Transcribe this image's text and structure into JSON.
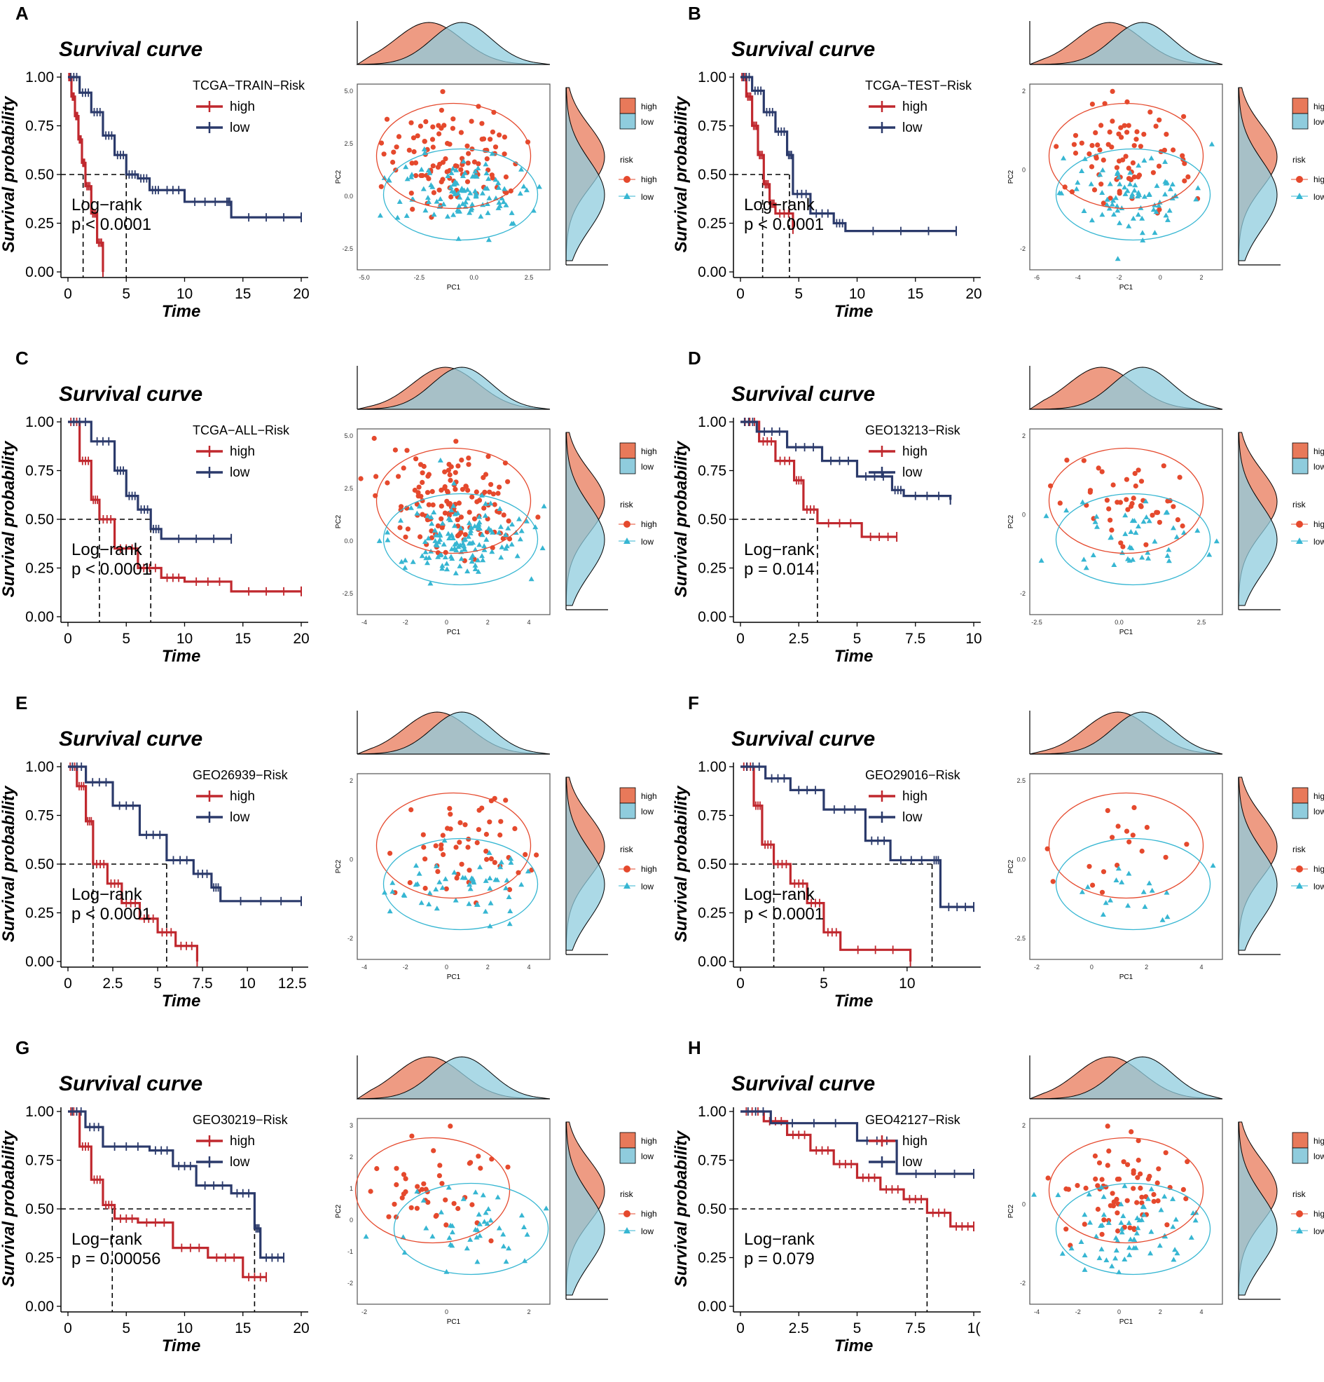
{
  "colors": {
    "high_line": "#C0282E",
    "low_line": "#2B3A6B",
    "high_fill": "#E8795A",
    "low_fill": "#8FCCDD",
    "overlap": "#6F9691",
    "high_point": "#E5492D",
    "low_point": "#36B6D2",
    "dash": "#000000"
  },
  "panels": [
    {
      "label": "A",
      "survival": {
        "title": "Survival curve",
        "xlabel": "Time",
        "ylabel": "Survival probability",
        "legend_title": "TCGA−TRAIN−Risk",
        "legend_high": "high",
        "legend_low": "low",
        "logrank_line1": "Log−rank",
        "logrank_line2": "p < 0.0001",
        "xticks": [
          "0",
          "5",
          "10",
          "15",
          "20"
        ],
        "yticks": [
          "0.00",
          "0.25",
          "0.50",
          "0.75",
          "1.00"
        ]
      },
      "pca": {
        "xlabel": "PC1",
        "ylabel": "PC2",
        "xticks": [
          "-5.0",
          "-2.5",
          "0.0",
          "2.5"
        ],
        "yticks": [
          "5.0",
          "2.5",
          "0.0",
          "-2.5"
        ],
        "legend_high": "high",
        "legend_low": "low",
        "legend_title": "risk"
      }
    },
    {
      "label": "B",
      "survival": {
        "title": "Survival curve",
        "xlabel": "Time",
        "ylabel": "Survival probability",
        "legend_title": "TCGA−TEST−Risk",
        "legend_high": "high",
        "legend_low": "low",
        "logrank_line1": "Log−rank",
        "logrank_line2": "p < 0.0001",
        "xticks": [
          "0",
          "5",
          "10",
          "15",
          "20"
        ],
        "yticks": [
          "0.00",
          "0.25",
          "0.50",
          "0.75",
          "1.00"
        ]
      },
      "pca": {
        "xlabel": "PC1",
        "ylabel": "PC2",
        "xticks": [
          "-6",
          "-4",
          "-2",
          "0",
          "2"
        ],
        "yticks": [
          "2",
          "0",
          "-2"
        ],
        "legend_high": "high",
        "legend_low": "low",
        "legend_title": "risk"
      }
    },
    {
      "label": "C",
      "survival": {
        "title": "Survival curve",
        "xlabel": "Time",
        "ylabel": "Survival probability",
        "legend_title": "TCGA−ALL−Risk",
        "legend_high": "high",
        "legend_low": "low",
        "logrank_line1": "Log−rank",
        "logrank_line2": "p < 0.0001",
        "xticks": [
          "0",
          "5",
          "10",
          "15",
          "20"
        ],
        "yticks": [
          "0.00",
          "0.25",
          "0.50",
          "0.75",
          "1.00"
        ]
      },
      "pca": {
        "xlabel": "PC1",
        "ylabel": "PC2",
        "xticks": [
          "-4",
          "-2",
          "0",
          "2",
          "4"
        ],
        "yticks": [
          "5.0",
          "2.5",
          "0.0",
          "-2.5"
        ],
        "legend_high": "high",
        "legend_low": "low",
        "legend_title": "risk"
      }
    },
    {
      "label": "D",
      "survival": {
        "title": "Survival curve",
        "xlabel": "Time",
        "ylabel": "Survival probability",
        "legend_title": "GEO13213−Risk",
        "legend_high": "high",
        "legend_low": "low",
        "logrank_line1": "Log−rank",
        "logrank_line2": "p = 0.014",
        "xticks": [
          "0",
          "2.5",
          "5",
          "7.5",
          "10"
        ],
        "yticks": [
          "0.00",
          "0.25",
          "0.50",
          "0.75",
          "1.00"
        ]
      },
      "pca": {
        "xlabel": "PC1",
        "ylabel": "PC2",
        "xticks": [
          "-2.5",
          "0.0",
          "2.5"
        ],
        "yticks": [
          "2",
          "0",
          "-2"
        ],
        "legend_high": "high",
        "legend_low": "low",
        "legend_title": "risk"
      }
    },
    {
      "label": "E",
      "survival": {
        "title": "Survival curve",
        "xlabel": "Time",
        "ylabel": "Survival probability",
        "legend_title": "GEO26939−Risk",
        "legend_high": "high",
        "legend_low": "low",
        "logrank_line1": "Log−rank",
        "logrank_line2": "p < 0.0001",
        "xticks": [
          "0",
          "2.5",
          "5",
          "7.5",
          "10",
          "12.5"
        ],
        "yticks": [
          "0.00",
          "0.25",
          "0.50",
          "0.75",
          "1.00"
        ]
      },
      "pca": {
        "xlabel": "PC1",
        "ylabel": "PC2",
        "xticks": [
          "-4",
          "-2",
          "0",
          "2",
          "4"
        ],
        "yticks": [
          "2",
          "0",
          "-2"
        ],
        "legend_high": "high",
        "legend_low": "low",
        "legend_title": "risk"
      }
    },
    {
      "label": "F",
      "survival": {
        "title": "Survival curve",
        "xlabel": "Time",
        "ylabel": "Survival probability",
        "legend_title": "GEO29016−Risk",
        "legend_high": "high",
        "legend_low": "low",
        "logrank_line1": "Log−rank",
        "logrank_line2": "p < 0.0001",
        "xticks": [
          "0",
          "5",
          "10",
          "1"
        ],
        "yticks": [
          "0.00",
          "0.25",
          "0.50",
          "0.75",
          "1.00"
        ]
      },
      "pca": {
        "xlabel": "PC1",
        "ylabel": "PC2",
        "xticks": [
          "-2",
          "0",
          "2",
          "4"
        ],
        "yticks": [
          "2.5",
          "0.0",
          "-2.5"
        ],
        "legend_high": "high",
        "legend_low": "low",
        "legend_title": "risk"
      }
    },
    {
      "label": "G",
      "survival": {
        "title": "Survival curve",
        "xlabel": "Time",
        "ylabel": "Survival probability",
        "legend_title": "GEO30219−Risk",
        "legend_high": "high",
        "legend_low": "low",
        "logrank_line1": "Log−rank",
        "logrank_line2": "p = 0.00056",
        "xticks": [
          "0",
          "5",
          "10",
          "15",
          "20"
        ],
        "yticks": [
          "0.00",
          "0.25",
          "0.50",
          "0.75",
          "1.00"
        ]
      },
      "pca": {
        "xlabel": "PC1",
        "ylabel": "PC2",
        "xticks": [
          "-2",
          "0",
          "2"
        ],
        "yticks": [
          "3",
          "2",
          "1",
          "0",
          "-1",
          "-2"
        ],
        "legend_high": "high",
        "legend_low": "low",
        "legend_title": "risk"
      }
    },
    {
      "label": "H",
      "survival": {
        "title": "Survival curve",
        "xlabel": "Time",
        "ylabel": "Survival probability",
        "legend_title": "GEO42127−Risk",
        "legend_high": "high",
        "legend_low": "low",
        "logrank_line1": "Log−rank",
        "logrank_line2": "p = 0.079",
        "xticks": [
          "0",
          "2.5",
          "5",
          "7.5",
          "1("
        ],
        "yticks": [
          "0.00",
          "0.25",
          "0.50",
          "0.75",
          "1.00"
        ]
      },
      "pca": {
        "xlabel": "PC1",
        "ylabel": "PC2",
        "xticks": [
          "-4",
          "-2",
          "0",
          "2",
          "4"
        ],
        "yticks": [
          "2",
          "0",
          "-2"
        ],
        "legend_high": "high",
        "legend_low": "low",
        "legend_title": "risk"
      }
    }
  ],
  "chart_data": [
    {
      "type": "line",
      "panel": "A",
      "title": "Survival curve",
      "xlabel": "Time",
      "ylabel": "Survival probability",
      "xlim": [
        0,
        20
      ],
      "ylim": [
        0,
        1
      ],
      "series": [
        {
          "name": "high",
          "x": [
            0,
            0.3,
            0.6,
            0.9,
            1.2,
            1.5,
            2.0,
            2.5,
            3.0
          ],
          "y": [
            1.0,
            0.9,
            0.8,
            0.68,
            0.56,
            0.44,
            0.3,
            0.15,
            0.0
          ]
        },
        {
          "name": "low",
          "x": [
            0,
            1,
            2,
            3,
            4,
            5,
            6,
            7,
            8,
            10,
            13.5,
            14,
            20
          ],
          "y": [
            1.0,
            0.92,
            0.82,
            0.7,
            0.6,
            0.5,
            0.48,
            0.42,
            0.42,
            0.36,
            0.36,
            0.28,
            0.28
          ]
        }
      ],
      "median_high": 1.3,
      "median_low": 5.0,
      "annotation": "Log−rank p < 0.0001"
    },
    {
      "type": "line",
      "panel": "B",
      "title": "Survival curve",
      "xlabel": "Time",
      "ylabel": "Survival probability",
      "xlim": [
        0,
        20
      ],
      "ylim": [
        0,
        1
      ],
      "series": [
        {
          "name": "high",
          "x": [
            0,
            0.5,
            1,
            1.5,
            2,
            2.5,
            3,
            4.5
          ],
          "y": [
            1.0,
            0.9,
            0.75,
            0.6,
            0.45,
            0.35,
            0.3,
            0.22
          ]
        },
        {
          "name": "low",
          "x": [
            0,
            1,
            2,
            3,
            4,
            4.5,
            6,
            8,
            9,
            18.5
          ],
          "y": [
            1.0,
            0.93,
            0.82,
            0.72,
            0.6,
            0.4,
            0.3,
            0.25,
            0.21,
            0.21
          ]
        }
      ],
      "median_high": 1.9,
      "median_low": 4.2,
      "annotation": "Log−rank p < 0.0001"
    },
    {
      "type": "line",
      "panel": "C",
      "title": "Survival curve",
      "xlabel": "Time",
      "ylabel": "Survival probability",
      "xlim": [
        0,
        20
      ],
      "ylim": [
        0,
        1
      ],
      "series": [
        {
          "name": "high",
          "x": [
            0,
            1,
            2,
            2.7,
            4,
            6,
            8,
            10,
            14,
            20
          ],
          "y": [
            1.0,
            0.8,
            0.6,
            0.5,
            0.35,
            0.25,
            0.2,
            0.18,
            0.13,
            0.13
          ]
        },
        {
          "name": "low",
          "x": [
            0,
            2,
            4,
            5,
            6,
            7.1,
            8,
            14
          ],
          "y": [
            1.0,
            0.9,
            0.75,
            0.62,
            0.55,
            0.45,
            0.4,
            0.4
          ]
        }
      ],
      "median_high": 2.7,
      "median_low": 7.1,
      "annotation": "Log−rank p < 0.0001"
    },
    {
      "type": "line",
      "panel": "D",
      "title": "Survival curve",
      "xlabel": "Time",
      "ylabel": "Survival probability",
      "xlim": [
        0,
        10
      ],
      "ylim": [
        0,
        1
      ],
      "series": [
        {
          "name": "high",
          "x": [
            0,
            0.8,
            1.5,
            2.3,
            2.7,
            3.3,
            5.2,
            6.7
          ],
          "y": [
            1.0,
            0.9,
            0.8,
            0.7,
            0.55,
            0.48,
            0.41,
            0.41
          ]
        },
        {
          "name": "low",
          "x": [
            0,
            0.7,
            2,
            3.5,
            5,
            6.5,
            7,
            9
          ],
          "y": [
            1.0,
            0.95,
            0.87,
            0.8,
            0.72,
            0.65,
            0.62,
            0.6
          ]
        }
      ],
      "median_high": 3.3,
      "annotation": "Log−rank p = 0.014"
    },
    {
      "type": "line",
      "panel": "E",
      "title": "Survival curve",
      "xlabel": "Time",
      "ylabel": "Survival probability",
      "xlim": [
        0,
        13
      ],
      "ylim": [
        0,
        1
      ],
      "series": [
        {
          "name": "high",
          "x": [
            0,
            0.5,
            1,
            1.4,
            2.2,
            3,
            4,
            5,
            6,
            7.2
          ],
          "y": [
            1.0,
            0.9,
            0.72,
            0.5,
            0.4,
            0.3,
            0.22,
            0.15,
            0.08,
            0.0
          ]
        },
        {
          "name": "low",
          "x": [
            0,
            1,
            2.5,
            4,
            5.5,
            7,
            8,
            8.5,
            13
          ],
          "y": [
            1.0,
            0.92,
            0.8,
            0.65,
            0.52,
            0.45,
            0.38,
            0.31,
            0.31
          ]
        }
      ],
      "median_high": 1.4,
      "median_low": 5.5,
      "annotation": "Log−rank p < 0.0001"
    },
    {
      "type": "line",
      "panel": "F",
      "title": "Survival curve",
      "xlabel": "Time",
      "ylabel": "Survival probability",
      "xlim": [
        0,
        14
      ],
      "ylim": [
        0,
        1
      ],
      "series": [
        {
          "name": "high",
          "x": [
            0,
            0.8,
            1.3,
            2,
            3,
            4,
            5,
            6,
            10.2
          ],
          "y": [
            1.0,
            0.8,
            0.6,
            0.5,
            0.4,
            0.3,
            0.15,
            0.06,
            0.0
          ]
        },
        {
          "name": "low",
          "x": [
            0,
            1.5,
            3,
            5,
            7.5,
            9,
            11.5,
            12,
            14
          ],
          "y": [
            1.0,
            0.94,
            0.88,
            0.78,
            0.62,
            0.52,
            0.52,
            0.28,
            0.28
          ]
        }
      ],
      "median_high": 2.0,
      "median_low": 11.5,
      "annotation": "Log−rank p < 0.0001"
    },
    {
      "type": "line",
      "panel": "G",
      "title": "Survival curve",
      "xlabel": "Time",
      "ylabel": "Survival probability",
      "xlim": [
        0,
        20
      ],
      "ylim": [
        0,
        1
      ],
      "series": [
        {
          "name": "high",
          "x": [
            0,
            1,
            2,
            3,
            4,
            6,
            9,
            12,
            15,
            17
          ],
          "y": [
            1.0,
            0.82,
            0.65,
            0.52,
            0.45,
            0.43,
            0.3,
            0.25,
            0.15,
            0.15
          ]
        },
        {
          "name": "low",
          "x": [
            0,
            1.5,
            3,
            7,
            9,
            11,
            14,
            16,
            16.5,
            18.5
          ],
          "y": [
            1.0,
            0.92,
            0.82,
            0.8,
            0.72,
            0.62,
            0.58,
            0.4,
            0.25,
            0.25
          ]
        }
      ],
      "median_high": 3.8,
      "median_low": 16.0,
      "annotation": "Log−rank p = 0.00056"
    },
    {
      "type": "line",
      "panel": "H",
      "title": "Survival curve",
      "xlabel": "Time",
      "ylabel": "Survival probability",
      "xlim": [
        0,
        10
      ],
      "ylim": [
        0,
        1
      ],
      "series": [
        {
          "name": "high",
          "x": [
            0,
            1,
            2,
            3,
            4,
            5,
            6,
            7,
            8,
            9,
            10
          ],
          "y": [
            1.0,
            0.95,
            0.88,
            0.8,
            0.73,
            0.66,
            0.6,
            0.55,
            0.48,
            0.41,
            0.41
          ]
        },
        {
          "name": "low",
          "x": [
            0,
            1.3,
            5,
            6.7,
            10
          ],
          "y": [
            1.0,
            0.94,
            0.85,
            0.68,
            0.68
          ]
        }
      ],
      "median_high": 8.0,
      "annotation": "Log−rank p = 0.079"
    }
  ]
}
